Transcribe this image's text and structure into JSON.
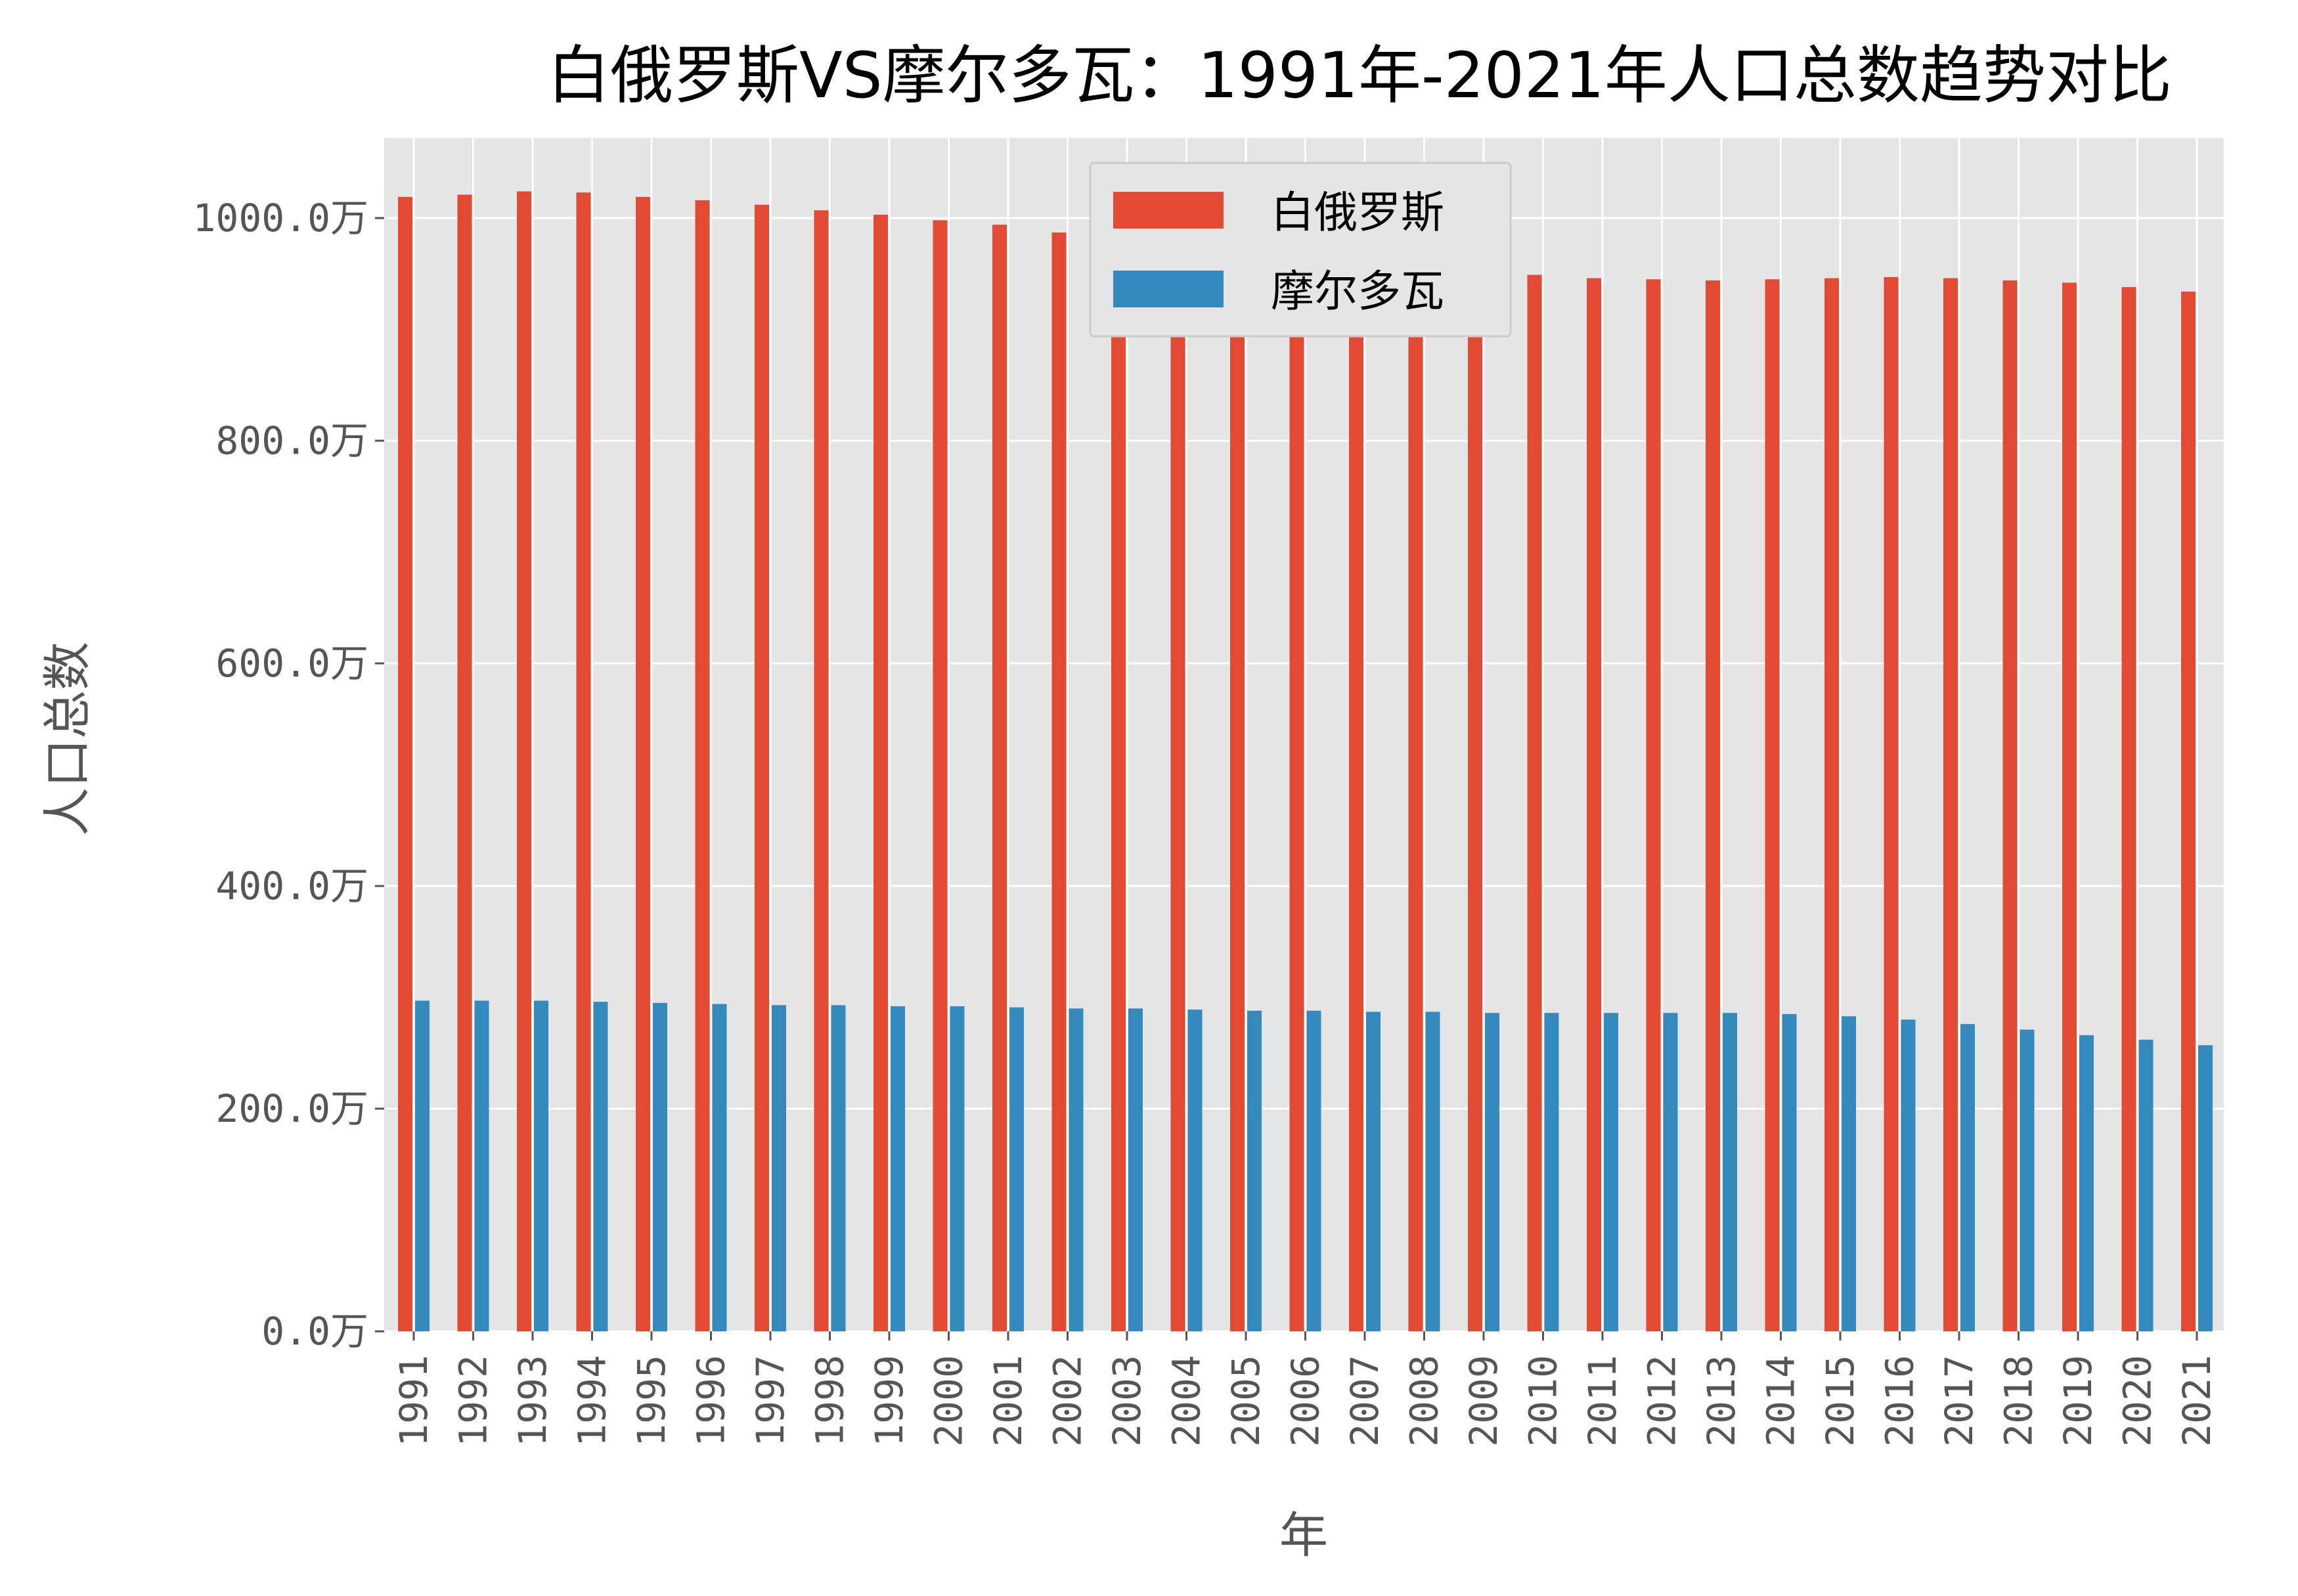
{
  "chart_data": {
    "type": "bar",
    "title": "白俄罗斯VS摩尔多瓦：1991年-2021年人口总数趋势对比",
    "xlabel": "年",
    "ylabel": "人口总数",
    "categories": [
      "1991",
      "1992",
      "1993",
      "1994",
      "1995",
      "1996",
      "1997",
      "1998",
      "1999",
      "2000",
      "2001",
      "2002",
      "2003",
      "2004",
      "2005",
      "2006",
      "2007",
      "2008",
      "2009",
      "2010",
      "2011",
      "2012",
      "2013",
      "2014",
      "2015",
      "2016",
      "2017",
      "2018",
      "2019",
      "2020",
      "2021"
    ],
    "series": [
      {
        "name": "白俄罗斯",
        "color": "#E24A33",
        "values": [
          1019,
          1021,
          1024,
          1023,
          1019,
          1016,
          1012,
          1007,
          1003,
          998,
          994,
          987,
          980,
          973,
          966,
          959,
          953,
          949,
          946,
          949,
          946,
          945,
          944,
          945,
          946,
          947,
          946,
          944,
          942,
          938,
          934
        ]
      },
      {
        "name": "摩尔多瓦",
        "color": "#348ABD",
        "values": [
          297,
          297,
          297,
          296,
          295,
          294,
          293,
          293,
          292,
          292,
          291,
          290,
          290,
          289,
          288,
          288,
          287,
          287,
          286,
          286,
          286,
          286,
          286,
          285,
          283,
          280,
          276,
          271,
          266,
          262,
          257
        ]
      }
    ],
    "ylim": [
      0,
      1072
    ],
    "yticks": [
      0,
      200,
      400,
      600,
      800,
      1000
    ],
    "ytick_labels": [
      "0.0万",
      "200.0万",
      "400.0万",
      "600.0万",
      "800.0万",
      "1000.0万"
    ],
    "grid": true,
    "legend_position": "top-center",
    "background": "#E5E5E5"
  }
}
